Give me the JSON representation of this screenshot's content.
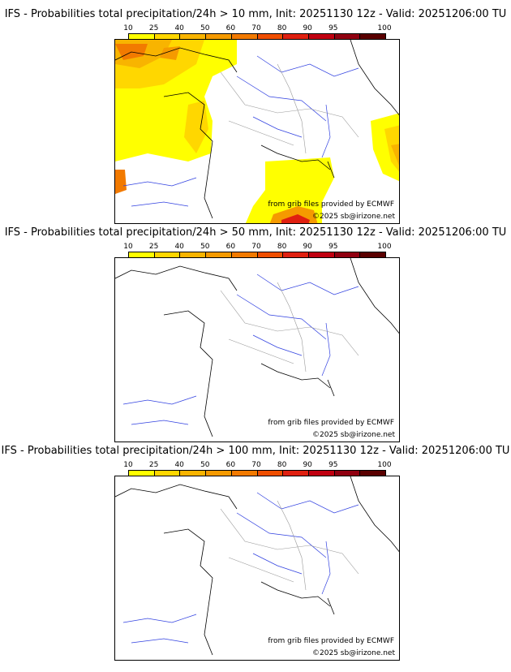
{
  "colorbar": {
    "ticks": [
      "10",
      "25",
      "40",
      "50",
      "60",
      "70",
      "80",
      "90",
      "95",
      "100"
    ],
    "colors": [
      "#ffff00",
      "#ffd700",
      "#f8b400",
      "#f59a00",
      "#f27a00",
      "#ef4e00",
      "#e02010",
      "#c00010",
      "#900010",
      "#5a0000"
    ]
  },
  "map_labels": {
    "source": "from grib files provided by ECMWF",
    "copyright": "©2025 sb@irizone.net"
  },
  "panels": [
    {
      "title": "IFS - Probabilities total precipitation/24h > 10 mm, Init: 20251130 12z - Valid: 20251206:00 TU",
      "has_precip": true
    },
    {
      "title": "IFS - Probabilities total precipitation/24h > 50 mm, Init: 20251130 12z - Valid: 20251206:00 TU",
      "has_precip": false
    },
    {
      "title": "IFS - Probabilities total precipitation/24h > 100 mm, Init: 20251130 12z - Valid: 20251206:00 TU",
      "has_precip": false
    }
  ]
}
